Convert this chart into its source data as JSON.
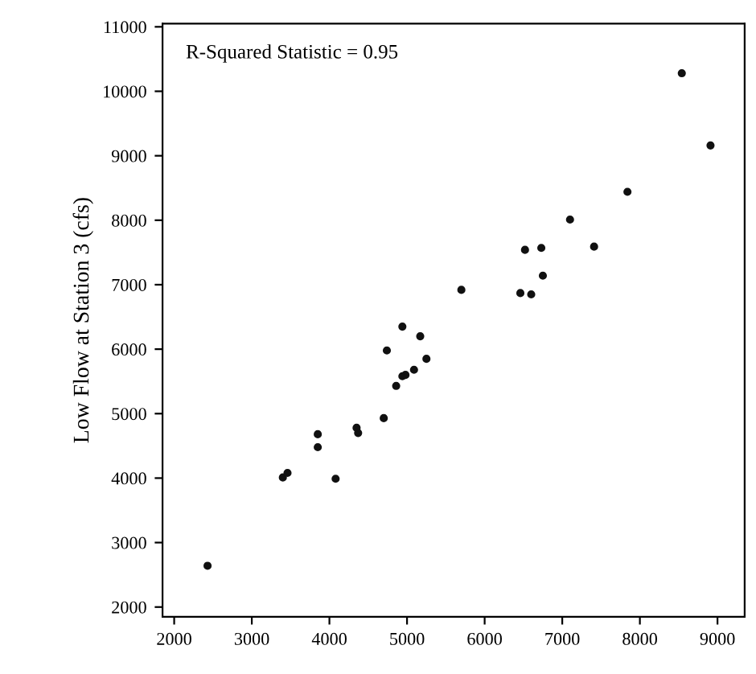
{
  "chart_data": {
    "type": "scatter",
    "ylabel": "Low Flow at Station 3 (cfs)",
    "annotations": [
      "R-Squared Statistic = 0.95"
    ],
    "x": [
      2430,
      3400,
      3460,
      3850,
      3850,
      4080,
      4350,
      4370,
      4700,
      4740,
      4860,
      4940,
      4940,
      4980,
      5090,
      5170,
      5250,
      5700,
      6460,
      6520,
      6600,
      6730,
      6750,
      7100,
      7410,
      7840,
      8540,
      8910
    ],
    "series": [
      {
        "color": "#111111",
        "values": [
          2640,
          4010,
          4080,
          4680,
          4480,
          3990,
          4780,
          4700,
          4930,
          5980,
          5430,
          5580,
          6350,
          5600,
          5680,
          6200,
          5850,
          6920,
          6870,
          7540,
          6850,
          7570,
          7140,
          8010,
          7590,
          8440,
          10280,
          9160
        ]
      }
    ],
    "xlim": [
      1850,
      9350
    ],
    "ylim": [
      1850,
      11050
    ],
    "xticks": [
      2000,
      3000,
      4000,
      5000,
      6000,
      7000,
      8000,
      9000
    ],
    "yticks": [
      2000,
      3000,
      4000,
      5000,
      6000,
      7000,
      8000,
      9000,
      10000,
      11000
    ],
    "marker": "circle",
    "grid": false,
    "legend": false
  }
}
